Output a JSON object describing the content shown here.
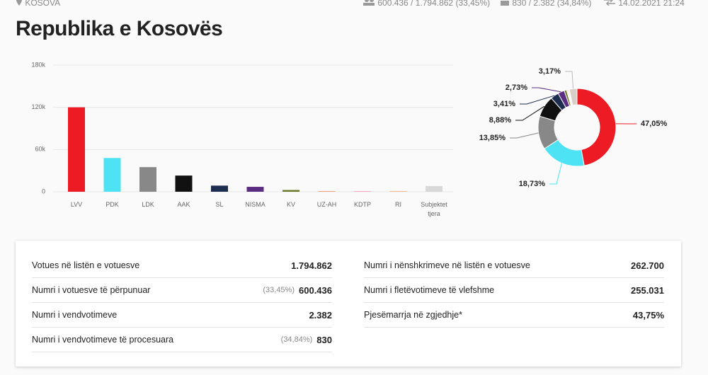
{
  "header": {
    "location": "KOSOVA",
    "voters": "600.436 / 1.794.862 (33,45%)",
    "stations": "830 / 2.382 (34,84%)",
    "timestamp": "14.02.2021 21:24",
    "title": "Republika e Kosovës"
  },
  "chart_data": [
    {
      "type": "bar",
      "categories": [
        "LVV",
        "PDK",
        "LDK",
        "AAK",
        "SL",
        "NISMA",
        "KV",
        "UZ-AH",
        "KDTP",
        "RI",
        "Subjektet tjera"
      ],
      "values": [
        120000,
        48000,
        35000,
        23000,
        8700,
        7000,
        2500,
        1000,
        900,
        900,
        8100
      ],
      "colors": [
        "#ed1c24",
        "#4de3f5",
        "#888888",
        "#111111",
        "#1c2d4f",
        "#5b2d82",
        "#6b7a2a",
        "#f0a080",
        "#f5a0b5",
        "#f5b080",
        "#d8d8d8"
      ],
      "ylim": [
        0,
        180000
      ],
      "yticks": [
        0,
        {
          "value": 60000,
          "label": "60k"
        },
        {
          "value": 120000,
          "label": "120k"
        },
        {
          "value": 180000,
          "label": "180k"
        }
      ],
      "grid": true
    },
    {
      "type": "pie",
      "values": [
        47.05,
        18.73,
        13.85,
        8.88,
        3.41,
        2.73,
        1.0,
        0.4,
        0.4,
        0.38,
        3.17
      ],
      "value_labels": [
        "47,05%",
        "18,73%",
        "13,85%",
        "8,88%",
        "3,41%",
        "2,73%",
        null,
        null,
        null,
        null,
        "3,17%"
      ],
      "colors": [
        "#ed1c24",
        "#4de3f5",
        "#888888",
        "#111111",
        "#1c2d4f",
        "#5b2d82",
        "#6b7a2a",
        "#f0a080",
        "#f5a0b5",
        "#f5b080",
        "#d8d0c8"
      ]
    }
  ],
  "stats": {
    "left": [
      {
        "label": "Votues në listën e votuesve",
        "value": "1.794.862"
      },
      {
        "label": "Numri i votuesve të përpunuar",
        "share": "(33,45%)",
        "value": "600.436"
      },
      {
        "label": "Numri i vendvotimeve",
        "value": "2.382"
      },
      {
        "label": "Numri i vendvotimeve të procesuara",
        "share": "(34,84%)",
        "value": "830"
      }
    ],
    "right": [
      {
        "label": "Numri i nënshkrimeve në listën e votuesve",
        "value": "262.700"
      },
      {
        "label": "Numri i fletëvotimeve të vlefshme",
        "value": "255.031"
      },
      {
        "label": "Pjesëmarrja në zgjedhje*",
        "value": "43,75%"
      }
    ]
  }
}
